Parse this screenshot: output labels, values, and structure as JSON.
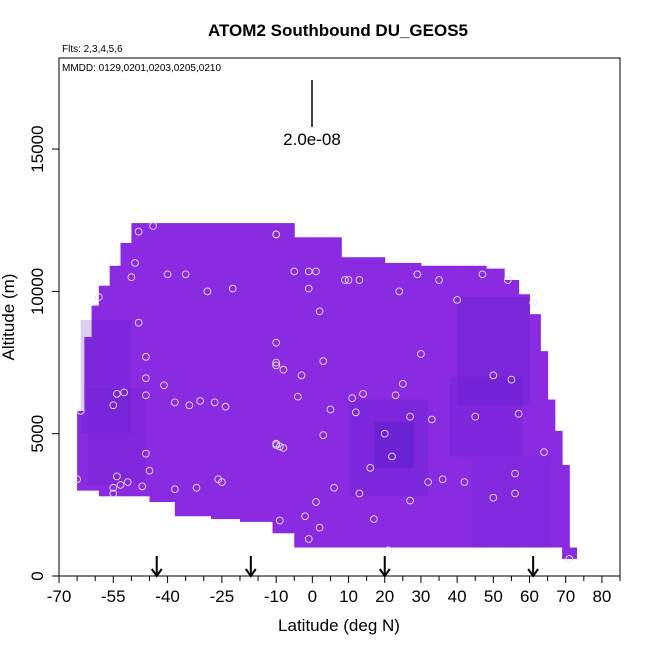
{
  "chart_data": {
    "type": "heatmap",
    "title": "ATOM2 Southbound DU_GEOS5",
    "subtitle_lines": [
      "Flts: 2,3,4,5,6",
      "MMDD: 0129,0201,0203,0205,0210"
    ],
    "xlabel": "Latitude (deg N)",
    "ylabel": "Altitude (m)",
    "xlim": [
      -70,
      85
    ],
    "ylim": [
      0,
      18200
    ],
    "x_tick_labels": [
      "-70",
      "-55",
      "-40",
      "-25",
      "-10",
      "0",
      "10",
      "20",
      "30",
      "40",
      "50",
      "60",
      "70",
      "80"
    ],
    "x_tick_values": [
      -70,
      -55,
      -40,
      -25,
      -10,
      0,
      10,
      20,
      30,
      40,
      50,
      60,
      70,
      80
    ],
    "y_tick_labels": [
      "0",
      "5000",
      "10000",
      "15000"
    ],
    "y_tick_values": [
      0,
      5000,
      10000,
      15000
    ],
    "scale_bar_label": "2.0e-08",
    "arrow_latitudes": [
      -43,
      -17,
      20,
      61
    ],
    "field_color": "#8a2be2",
    "dark_color": "#5a1ec8",
    "marker_color": "#e8e0f0",
    "curtain": [
      {
        "lat": -65,
        "bottom": 3000,
        "top": 5800
      },
      {
        "lat": -63,
        "bottom": 3000,
        "top": 8400
      },
      {
        "lat": -61,
        "bottom": 3000,
        "top": 9500
      },
      {
        "lat": -59,
        "bottom": 2800,
        "top": 10200
      },
      {
        "lat": -56,
        "bottom": 2800,
        "top": 10900
      },
      {
        "lat": -53,
        "bottom": 2800,
        "top": 11700
      },
      {
        "lat": -50,
        "bottom": 2800,
        "top": 12400
      },
      {
        "lat": -45,
        "bottom": 2600,
        "top": 12400
      },
      {
        "lat": -38,
        "bottom": 2100,
        "top": 12400
      },
      {
        "lat": -28,
        "bottom": 2000,
        "top": 12400
      },
      {
        "lat": -20,
        "bottom": 1900,
        "top": 12400
      },
      {
        "lat": -11,
        "bottom": 1500,
        "top": 12400
      },
      {
        "lat": -5,
        "bottom": 1000,
        "top": 11900
      },
      {
        "lat": 8,
        "bottom": 1000,
        "top": 11200
      },
      {
        "lat": 20,
        "bottom": 1000,
        "top": 11000
      },
      {
        "lat": 30,
        "bottom": 1000,
        "top": 10900
      },
      {
        "lat": 40,
        "bottom": 1000,
        "top": 10900
      },
      {
        "lat": 48,
        "bottom": 1000,
        "top": 10800
      },
      {
        "lat": 53,
        "bottom": 1000,
        "top": 10400
      },
      {
        "lat": 57,
        "bottom": 1000,
        "top": 9900
      },
      {
        "lat": 60,
        "bottom": 1000,
        "top": 9200
      },
      {
        "lat": 63,
        "bottom": 1000,
        "top": 7900
      },
      {
        "lat": 65,
        "bottom": 1000,
        "top": 6200
      },
      {
        "lat": 67,
        "bottom": 1000,
        "top": 5100
      },
      {
        "lat": 69,
        "bottom": 600,
        "top": 3900
      },
      {
        "lat": 71,
        "bottom": 600,
        "top": 1000
      }
    ],
    "dark_regions": [
      {
        "lat": [
          -64,
          -50
        ],
        "alt": [
          5000,
          9000
        ],
        "level": 0.35
      },
      {
        "lat": [
          -62,
          -46
        ],
        "alt": [
          3200,
          6600
        ],
        "level": 0.3
      },
      {
        "lat": [
          10,
          32
        ],
        "alt": [
          2800,
          6200
        ],
        "level": 0.45
      },
      {
        "lat": [
          17,
          28
        ],
        "alt": [
          3800,
          5400
        ],
        "level": 0.8
      },
      {
        "lat": [
          40,
          60
        ],
        "alt": [
          6000,
          9800
        ],
        "level": 0.5
      },
      {
        "lat": [
          38,
          58
        ],
        "alt": [
          4200,
          7000
        ],
        "level": 0.35
      },
      {
        "lat": [
          44,
          66
        ],
        "alt": [
          1000,
          4200
        ],
        "level": 0.25
      }
    ],
    "points": [
      [
        -65,
        3400
      ],
      [
        -64,
        5800
      ],
      [
        -59,
        9800
      ],
      [
        -55,
        6000
      ],
      [
        -54,
        6400
      ],
      [
        -54,
        3500
      ],
      [
        -53,
        3200
      ],
      [
        -51,
        3300
      ],
      [
        -55,
        3100
      ],
      [
        -55,
        2900
      ],
      [
        -52,
        6450
      ],
      [
        -50,
        10500
      ],
      [
        -48,
        8900
      ],
      [
        -46,
        6350
      ],
      [
        -46,
        7700
      ],
      [
        -46,
        6950
      ],
      [
        -45,
        3700
      ],
      [
        -46,
        4300
      ],
      [
        -47,
        3150
      ],
      [
        -44,
        12300
      ],
      [
        -48,
        12100
      ],
      [
        -49,
        11000
      ],
      [
        -40,
        10600
      ],
      [
        -41,
        6700
      ],
      [
        -38,
        3050
      ],
      [
        -35,
        10600
      ],
      [
        -38,
        6100
      ],
      [
        -34,
        6000
      ],
      [
        -32,
        3100
      ],
      [
        -31,
        6150
      ],
      [
        -29,
        10000
      ],
      [
        -27,
        6100
      ],
      [
        -26,
        3400
      ],
      [
        -25,
        3300
      ],
      [
        -24,
        5950
      ],
      [
        -22,
        10100
      ],
      [
        -10,
        12000
      ],
      [
        -10,
        12000
      ],
      [
        -10,
        8200
      ],
      [
        -10,
        7500
      ],
      [
        -10,
        7400
      ],
      [
        -10,
        4600
      ],
      [
        -10,
        4650
      ],
      [
        -9,
        4550
      ],
      [
        -8,
        7250
      ],
      [
        -9,
        1950
      ],
      [
        -8,
        4500
      ],
      [
        -5,
        10700
      ],
      [
        -4,
        6300
      ],
      [
        -3,
        7050
      ],
      [
        -1,
        10700
      ],
      [
        -1,
        10100
      ],
      [
        1,
        10700
      ],
      [
        2,
        9300
      ],
      [
        3,
        7550
      ],
      [
        3,
        4950
      ],
      [
        2,
        1700
      ],
      [
        -1,
        1300
      ],
      [
        1,
        2600
      ],
      [
        -2,
        2100
      ],
      [
        5,
        5850
      ],
      [
        6,
        3100
      ],
      [
        9,
        10400
      ],
      [
        10,
        10400
      ],
      [
        11,
        6250
      ],
      [
        12,
        5750
      ],
      [
        13,
        10400
      ],
      [
        14,
        6400
      ],
      [
        13,
        2900
      ],
      [
        16,
        3800
      ],
      [
        17,
        2000
      ],
      [
        20,
        5000
      ],
      [
        22,
        4200
      ],
      [
        23,
        6350
      ],
      [
        21,
        900
      ],
      [
        24,
        10000
      ],
      [
        25,
        6750
      ],
      [
        27,
        2650
      ],
      [
        27,
        5600
      ],
      [
        29,
        10600
      ],
      [
        30,
        7800
      ],
      [
        32,
        3300
      ],
      [
        33,
        5500
      ],
      [
        35,
        10400
      ],
      [
        36,
        3400
      ],
      [
        40,
        9700
      ],
      [
        42,
        3300
      ],
      [
        45,
        5600
      ],
      [
        47,
        10600
      ],
      [
        50,
        7050
      ],
      [
        50,
        2750
      ],
      [
        54,
        10400
      ],
      [
        55,
        6900
      ],
      [
        56,
        3600
      ],
      [
        56,
        2900
      ],
      [
        57,
        5700
      ],
      [
        61,
        9600
      ],
      [
        64,
        4350
      ],
      [
        71,
        600
      ]
    ]
  }
}
